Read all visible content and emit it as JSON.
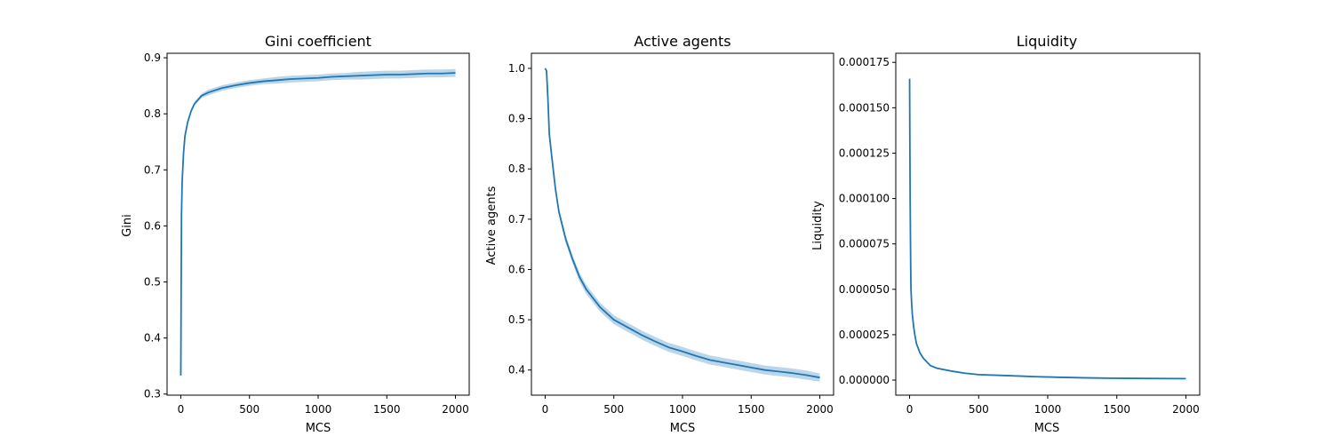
{
  "chart_data": [
    {
      "type": "line",
      "title": "Gini coefficient",
      "xlabel": "MCS",
      "ylabel": "Gini",
      "xlim": [
        -100,
        2100
      ],
      "ylim": [
        0.298,
        0.908
      ],
      "xticks": [
        0,
        500,
        1000,
        1500,
        2000
      ],
      "xtick_labels": [
        "0",
        "500",
        "1000",
        "1500",
        "2000"
      ],
      "yticks": [
        0.3,
        0.4,
        0.5,
        0.6,
        0.7,
        0.8,
        0.9
      ],
      "ytick_labels": [
        "0.3",
        "0.4",
        "0.5",
        "0.6",
        "0.7",
        "0.8",
        "0.9"
      ],
      "grid": false,
      "series": [
        {
          "color": "#1f77b4",
          "band_color": "#1f77b4",
          "x": [
            0,
            5,
            10,
            20,
            30,
            50,
            75,
            100,
            150,
            200,
            300,
            400,
            500,
            600,
            700,
            800,
            900,
            1000,
            1100,
            1200,
            1300,
            1400,
            1500,
            1600,
            1700,
            1800,
            1900,
            2000
          ],
          "y": [
            0.333,
            0.62,
            0.68,
            0.73,
            0.76,
            0.785,
            0.805,
            0.818,
            0.832,
            0.838,
            0.846,
            0.851,
            0.855,
            0.858,
            0.86,
            0.862,
            0.863,
            0.864,
            0.866,
            0.867,
            0.868,
            0.869,
            0.87,
            0.87,
            0.871,
            0.872,
            0.872,
            0.873
          ],
          "band": [
            0.001,
            0.002,
            0.002,
            0.002,
            0.002,
            0.003,
            0.003,
            0.003,
            0.004,
            0.005,
            0.005,
            0.005,
            0.005,
            0.005,
            0.006,
            0.006,
            0.006,
            0.006,
            0.006,
            0.006,
            0.007,
            0.007,
            0.007,
            0.007,
            0.007,
            0.007,
            0.007,
            0.007
          ]
        }
      ]
    },
    {
      "type": "line",
      "title": "Active agents",
      "xlabel": "MCS",
      "ylabel": "Active agents",
      "xlim": [
        -100,
        2100
      ],
      "ylim": [
        0.35,
        1.03
      ],
      "xticks": [
        0,
        500,
        1000,
        1500,
        2000
      ],
      "xtick_labels": [
        "0",
        "500",
        "1000",
        "1500",
        "2000"
      ],
      "yticks": [
        0.4,
        0.5,
        0.6,
        0.7,
        0.8,
        0.9,
        1.0
      ],
      "ytick_labels": [
        "0.4",
        "0.5",
        "0.6",
        "0.7",
        "0.8",
        "0.9",
        "1.0"
      ],
      "grid": false,
      "series": [
        {
          "color": "#1f77b4",
          "band_color": "#1f77b4",
          "x": [
            0,
            10,
            20,
            30,
            50,
            75,
            100,
            150,
            200,
            250,
            300,
            400,
            500,
            600,
            700,
            800,
            900,
            1000,
            1100,
            1200,
            1300,
            1400,
            1500,
            1600,
            1700,
            1800,
            1900,
            2000
          ],
          "y": [
            1.0,
            0.995,
            0.94,
            0.87,
            0.82,
            0.76,
            0.715,
            0.66,
            0.62,
            0.585,
            0.56,
            0.525,
            0.5,
            0.485,
            0.47,
            0.457,
            0.445,
            0.437,
            0.428,
            0.42,
            0.415,
            0.41,
            0.405,
            0.4,
            0.397,
            0.394,
            0.39,
            0.385
          ],
          "band": [
            0.002,
            0.003,
            0.004,
            0.005,
            0.006,
            0.007,
            0.007,
            0.008,
            0.008,
            0.009,
            0.009,
            0.009,
            0.009,
            0.009,
            0.009,
            0.009,
            0.009,
            0.009,
            0.009,
            0.009,
            0.009,
            0.009,
            0.009,
            0.009,
            0.009,
            0.009,
            0.009,
            0.008
          ]
        }
      ]
    },
    {
      "type": "line",
      "title": "Liquidity",
      "xlabel": "MCS",
      "ylabel": "Liquidity",
      "xlim": [
        -100,
        2100
      ],
      "ylim": [
        -8.3e-06,
        0.00018
      ],
      "xticks": [
        0,
        500,
        1000,
        1500,
        2000
      ],
      "xtick_labels": [
        "0",
        "500",
        "1000",
        "1500",
        "2000"
      ],
      "yticks": [
        0,
        2.5e-05,
        5e-05,
        7.5e-05,
        0.0001,
        0.000125,
        0.00015,
        0.000175
      ],
      "ytick_labels": [
        "0.000000",
        "0.000025",
        "0.000050",
        "0.000075",
        "0.000100",
        "0.000125",
        "0.000150",
        "0.000175"
      ],
      "grid": false,
      "series": [
        {
          "color": "#1f77b4",
          "band_color": "#1f77b4",
          "x": [
            0,
            2,
            4,
            6,
            8,
            10,
            15,
            20,
            30,
            40,
            50,
            75,
            100,
            150,
            200,
            300,
            400,
            500,
            700,
            900,
            1100,
            1300,
            1500,
            1700,
            2000
          ],
          "y": [
            0.000166,
            0.00013,
            0.0001,
            8e-05,
            6.2e-05,
            5e-05,
            4.2e-05,
            3.6e-05,
            2.9e-05,
            2.4e-05,
            2e-05,
            1.5e-05,
            1.2e-05,
            8e-06,
            6.5e-06,
            5e-06,
            3.8e-06,
            3e-06,
            2.5e-06,
            1.9e-06,
            1.5e-06,
            1.2e-06,
            1e-06,
            9e-07,
            8e-07
          ],
          "band": [
            4e-07,
            4e-07,
            4e-07,
            4e-07,
            4e-07,
            4e-07,
            4e-07,
            4e-07,
            4e-07,
            4e-07,
            4e-07,
            4e-07,
            4e-07,
            4e-07,
            4e-07,
            4e-07,
            4e-07,
            4e-07,
            4e-07,
            4e-07,
            4e-07,
            4e-07,
            4e-07,
            4e-07,
            4e-07
          ]
        }
      ]
    }
  ]
}
